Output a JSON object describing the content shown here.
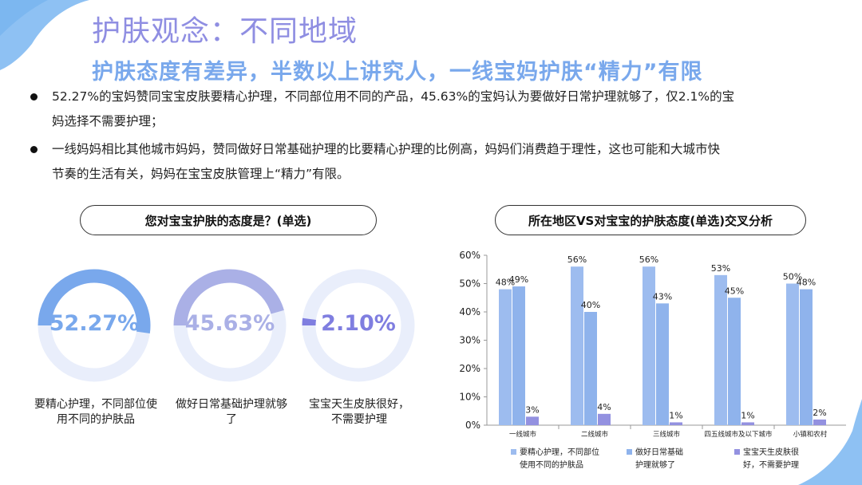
{
  "header": {
    "title": "护肤观念：不同地域",
    "subtitle": "护肤态度有差异，半数以上讲究人，一线宝妈护肤“精力”有限"
  },
  "bullets": [
    {
      "line1": "52.27%的宝妈赞同宝宝皮肤要精心护理，不同部位用不同的产品，45.63%的宝妈认为要做好日常护理就够了，仅2.1%的宝",
      "line2": "妈选择不需要护理；"
    },
    {
      "line1": "一线妈妈相比其他城市妈妈，赞同做好日常基础护理的比要精心护理的比例高，妈妈们消费趋于理性，这也可能和大城市快",
      "line2": "节奏的生活有关，妈妈在宝宝皮肤管理上“精力”有限。"
    }
  ],
  "colors": {
    "accent": "#8f8ee2",
    "blue": "#79a8ec",
    "periwinkle": "#9dbcef",
    "lavender": "#aab0e6",
    "purple": "#7f7ee0",
    "track": "#e9eefb"
  },
  "donut_panel": {
    "title": "您对宝宝护肤的态度是？(单选)",
    "items": [
      {
        "value_text": "52.27%",
        "value": 52.27,
        "label1": "要精心护理，不同部位使",
        "label2": "用不同的护肤品",
        "color": "#79a8ec"
      },
      {
        "value_text": "45.63%",
        "value": 45.63,
        "label1": "做好日常基础护理就够",
        "label2": "了",
        "color": "#aab0e6"
      },
      {
        "value_text": "2.10%",
        "value": 2.1,
        "label1": "宝宝天生皮肤很好，",
        "label2": "不需要护理",
        "color": "#7f7ee0"
      }
    ]
  },
  "chart_panel": {
    "title": "所在地区VS对宝宝的护肤态度(单选)交叉分析"
  },
  "chart_data": {
    "type": "bar",
    "title": "所在地区VS对宝宝的护肤态度(单选)交叉分析",
    "categories": [
      "一线城市",
      "二线城市",
      "三线城市",
      "四五线城市及以下城市",
      "小镇和农村"
    ],
    "series": [
      {
        "name": "要精心护理，不同部位使用不同的护肤品",
        "legend1": "要精心护理，不同部位",
        "legend2": "使用不同的护肤品",
        "values": [
          48,
          56,
          56,
          53,
          50
        ],
        "labels": [
          "48%",
          "56%",
          "56%",
          "53%",
          "50%"
        ],
        "color": "#9dbcef"
      },
      {
        "name": "做好日常基础护理就够了",
        "legend1": "做好日常基础",
        "legend2": "护理就够了",
        "values": [
          49,
          40,
          43,
          45,
          48
        ],
        "labels": [
          "49%",
          "40%",
          "43%",
          "45%",
          "48%"
        ],
        "color": "#8fb3ec"
      },
      {
        "name": "宝宝天生皮肤很好，不需要护理",
        "legend1": "宝宝天生皮肤很",
        "legend2": "好，不需要护理",
        "values": [
          3,
          4,
          1,
          1,
          2
        ],
        "labels": [
          "3%",
          "4%",
          "1%",
          "1%",
          "2%"
        ],
        "color": "#9391e0"
      }
    ],
    "yticks": [
      "0%",
      "10%",
      "20%",
      "30%",
      "40%",
      "50%",
      "60%"
    ],
    "ylim": [
      0,
      60
    ],
    "grid": false,
    "legend": "bottom"
  }
}
